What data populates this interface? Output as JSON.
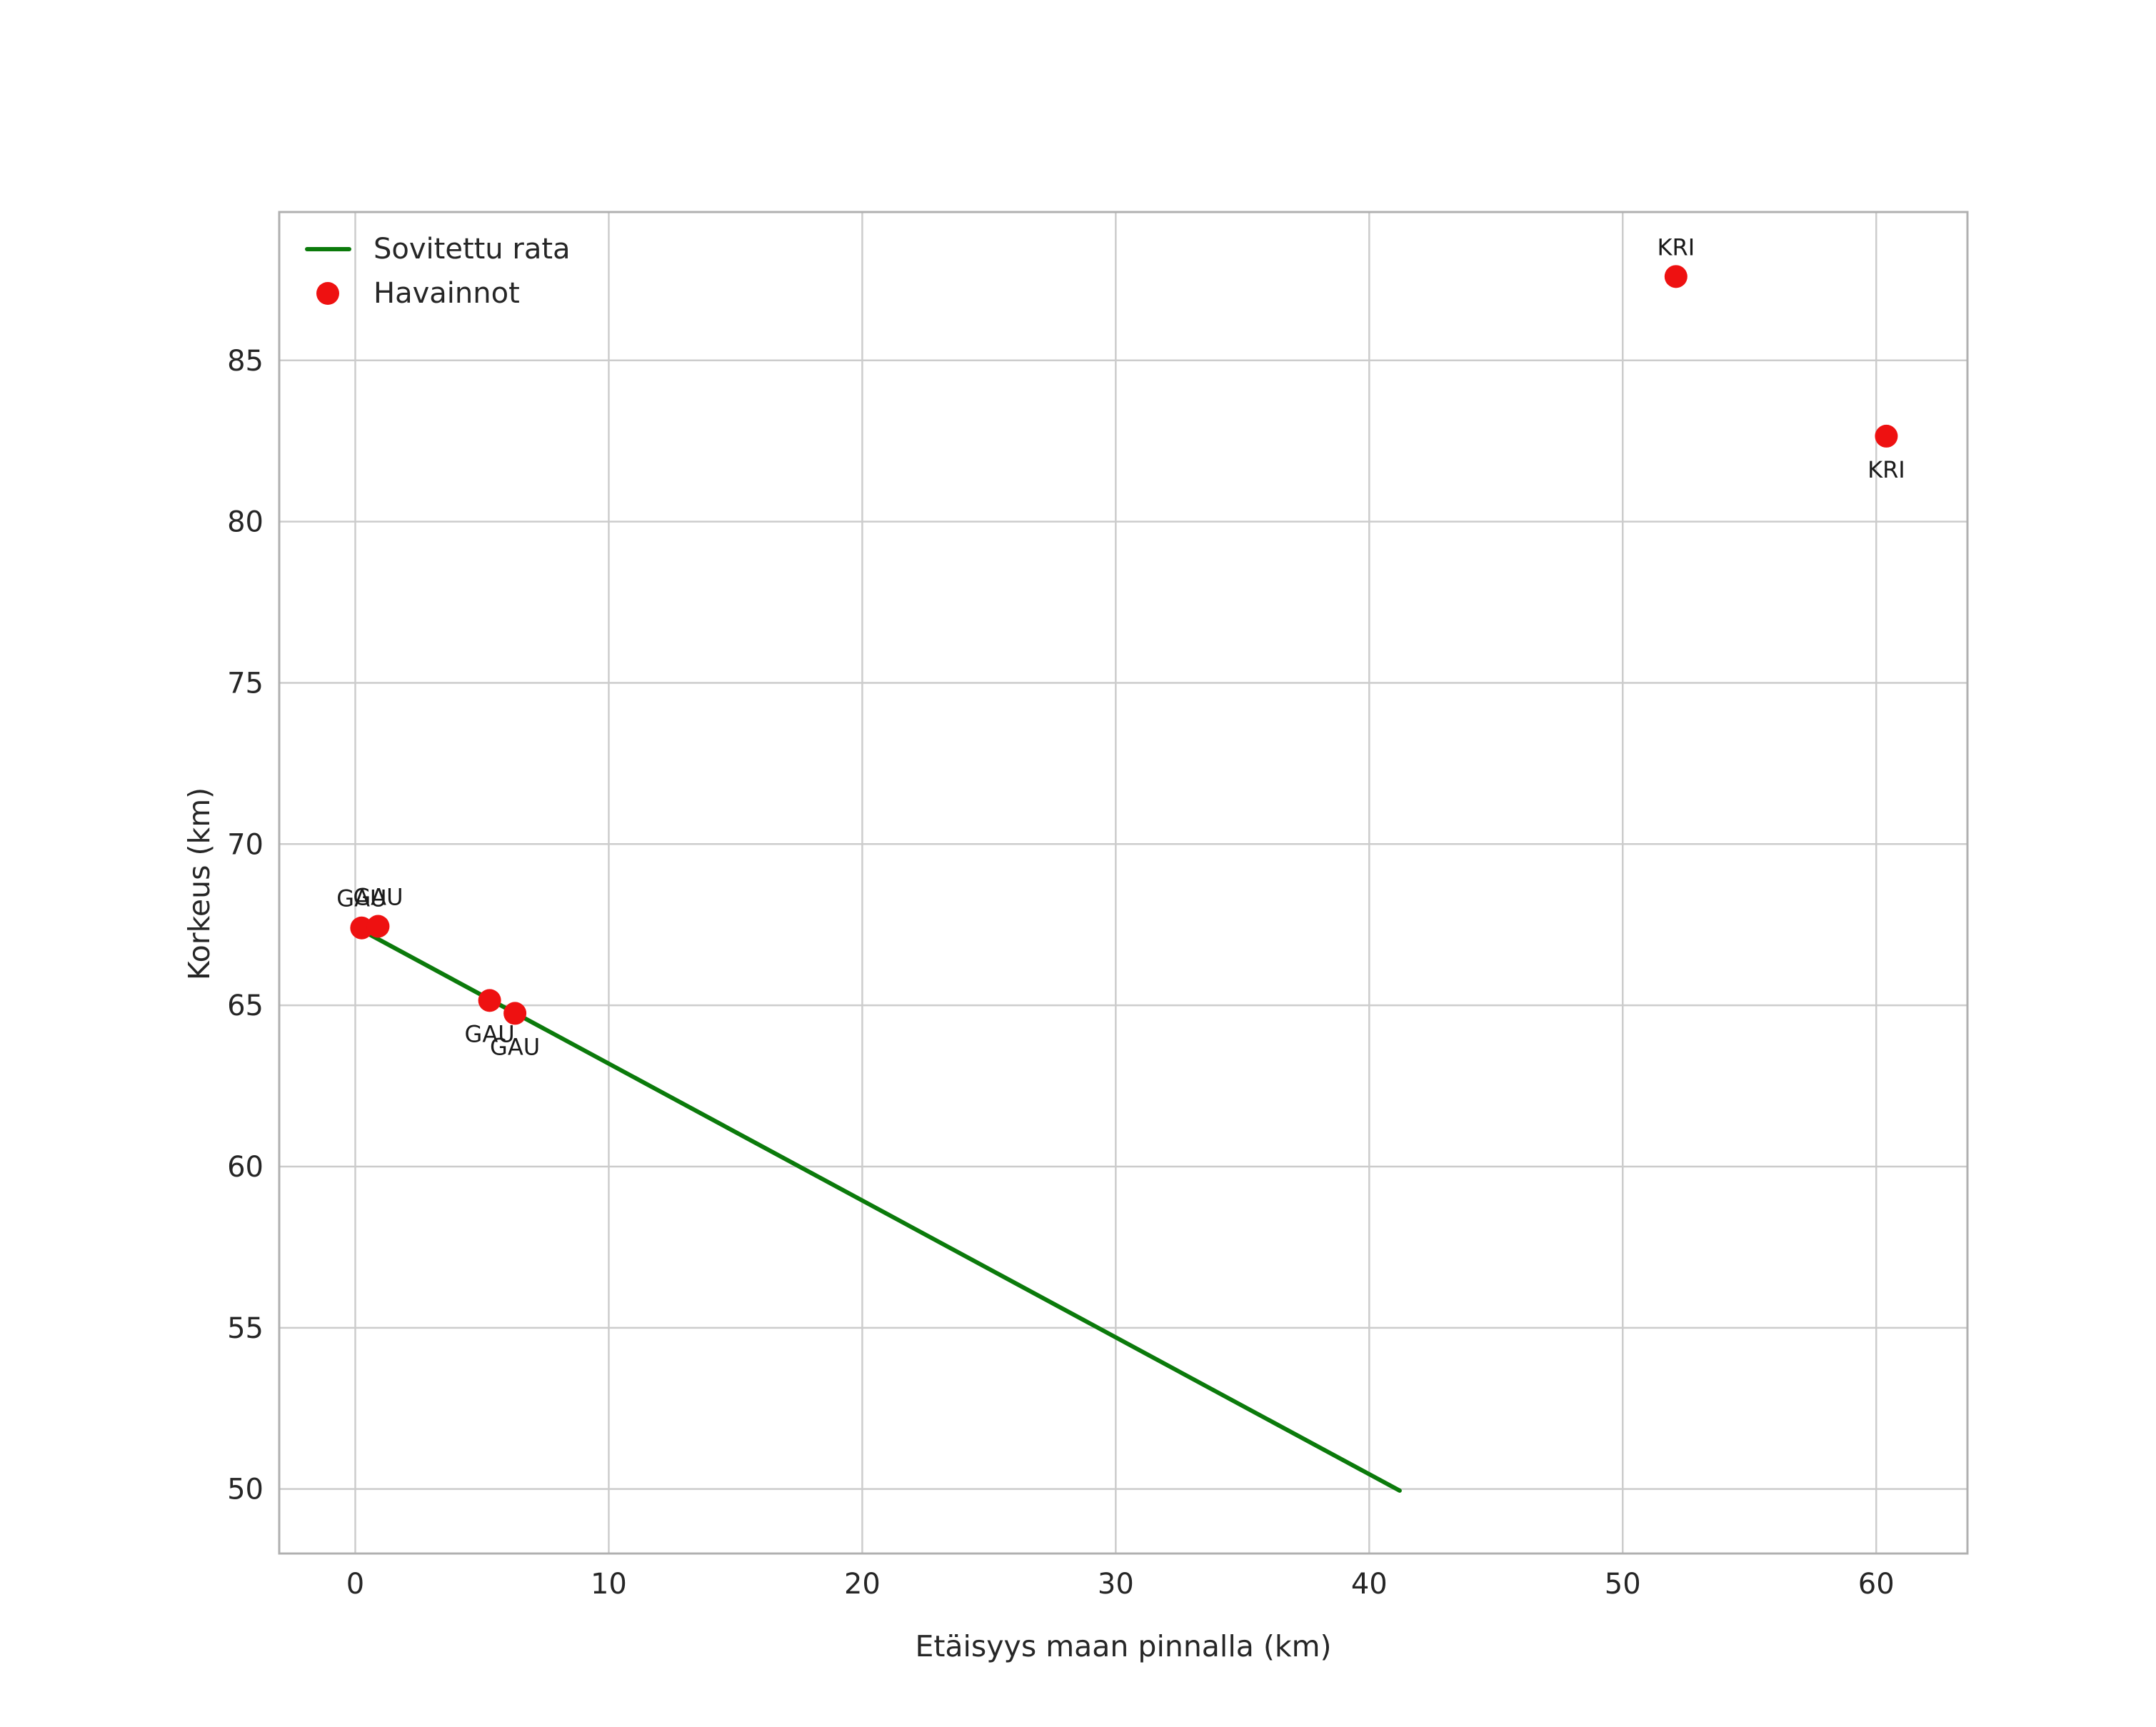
{
  "figure": {
    "background": "#ffffff"
  },
  "chart_data": {
    "type": "scatter",
    "title": "",
    "xlabel": "Etäisyys maan pinnalla (km)",
    "ylabel": "Korkeus (km)",
    "xlim": [
      -3.0,
      63.6
    ],
    "ylim": [
      48.0,
      89.6
    ],
    "xticks": [
      0,
      10,
      20,
      30,
      40,
      50,
      60
    ],
    "yticks": [
      50,
      55,
      60,
      65,
      70,
      75,
      80,
      85
    ],
    "grid": true,
    "style": {
      "grid_color": "#cccccc",
      "spine_color": "#b0b0b0",
      "tick_label_color": "#262626",
      "annotation_color": "#1a1a1a",
      "line_color": "#0b7a0b",
      "point_color": "#ee1111"
    },
    "legend": {
      "location": "upper-left",
      "entries": [
        {
          "label": "Sovitettu rata",
          "marker": "line",
          "color": "#0b7a0b"
        },
        {
          "label": "Havainnot",
          "marker": "point",
          "color": "#ee1111"
        }
      ]
    },
    "series": [
      {
        "name": "Sovitettu rata",
        "type": "line",
        "color": "#0b7a0b",
        "points": [
          [
            0.2,
            67.35
          ],
          [
            41.2,
            49.95
          ]
        ]
      },
      {
        "name": "Havainnot",
        "type": "scatter",
        "color": "#ee1111",
        "points": [
          {
            "x": 0.25,
            "y": 67.4,
            "label": "GAU",
            "label_pos": "above"
          },
          {
            "x": 0.9,
            "y": 67.45,
            "label": "GAU",
            "label_pos": "above"
          },
          {
            "x": 5.3,
            "y": 65.15,
            "label": "GAU",
            "label_pos": "below"
          },
          {
            "x": 6.3,
            "y": 64.75,
            "label": "GAU",
            "label_pos": "below"
          },
          {
            "x": 52.1,
            "y": 87.6,
            "label": "KRI",
            "label_pos": "above"
          },
          {
            "x": 60.4,
            "y": 82.65,
            "label": "KRI",
            "label_pos": "below"
          }
        ]
      }
    ]
  }
}
